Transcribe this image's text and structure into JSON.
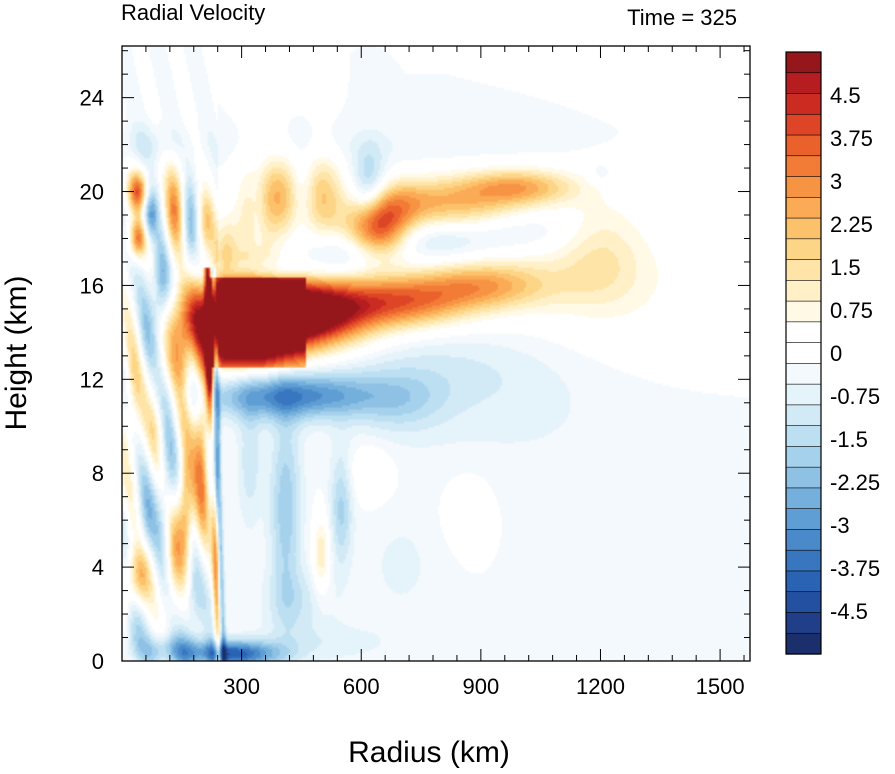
{
  "chart_data": {
    "type": "heatmap",
    "title": "Radial Velocity",
    "time_label": "Time = 325",
    "xlabel": "Radius (km)",
    "ylabel": "Height (km)",
    "xlim": [
      0,
      1500
    ],
    "ylim": [
      0,
      25
    ],
    "x_ticks": [
      300,
      600,
      900,
      1200,
      1500
    ],
    "y_ticks": [
      0,
      4,
      8,
      12,
      16,
      20,
      24
    ],
    "grid": false,
    "colorbar": {
      "min": -5.25,
      "max": 5.25,
      "step": 0.375,
      "tick_labels": [
        "4.5",
        "3.75",
        "3",
        "2.25",
        "1.5",
        "0.75",
        "0",
        "-0.75",
        "-1.5",
        "-2.25",
        "-3",
        "-3.75",
        "-4.5"
      ],
      "tick_values": [
        4.5,
        3.75,
        3,
        2.25,
        1.5,
        0.75,
        0,
        -0.75,
        -1.5,
        -2.25,
        -3,
        -3.75,
        -4.5
      ],
      "colors": [
        "#1a2f6b",
        "#203f88",
        "#2350a0",
        "#2a63b3",
        "#3877c0",
        "#4a8aca",
        "#5e9ed4",
        "#75b0dc",
        "#8ec1e4",
        "#a6d1ec",
        "#bcdff2",
        "#d2eaf6",
        "#e5f3fa",
        "#f4f9fd",
        "#ffffff",
        "#ffffff",
        "#fff9e6",
        "#fff0c8",
        "#fee4a6",
        "#fdd587",
        "#fcc26b",
        "#fbab55",
        "#f79444",
        "#f27b36",
        "#ea612c",
        "#dd4526",
        "#cc2b22",
        "#b51d20",
        "#95171c"
      ]
    },
    "features": [
      {
        "x": 300,
        "y": 14.5,
        "sx": 95,
        "sy": 1.2,
        "v": 7.5
      },
      {
        "x": 460,
        "y": 14.8,
        "sx": 110,
        "sy": 1.0,
        "v": 6.5
      },
      {
        "x": 700,
        "y": 15.3,
        "sx": 120,
        "sy": 0.8,
        "v": 3.5
      },
      {
        "x": 900,
        "y": 16.0,
        "sx": 110,
        "sy": 0.7,
        "v": 2.3
      },
      {
        "x": 1080,
        "y": 16.3,
        "sx": 150,
        "sy": 1.1,
        "v": 0.7
      },
      {
        "x": 1200,
        "y": 17.6,
        "sx": 70,
        "sy": 1.6,
        "v": 0.9
      },
      {
        "x": 1300,
        "y": 16.8,
        "sx": 140,
        "sy": 2.2,
        "v": 0.45
      },
      {
        "x": 1100,
        "y": 13.8,
        "sx": 260,
        "sy": 2.0,
        "v": 0.4
      },
      {
        "x": 640,
        "y": 18.4,
        "sx": 55,
        "sy": 0.9,
        "v": 4.5
      },
      {
        "x": 830,
        "y": 19.5,
        "sx": 120,
        "sy": 0.8,
        "v": 2.3
      },
      {
        "x": 1000,
        "y": 20.2,
        "sx": 100,
        "sy": 0.55,
        "v": 2.5
      },
      {
        "x": 700,
        "y": 19.6,
        "sx": 60,
        "sy": 0.7,
        "v": 1.2
      },
      {
        "x": 330,
        "y": 18.5,
        "sx": 35,
        "sy": 2.0,
        "v": 1.6
      },
      {
        "x": 400,
        "y": 19.8,
        "sx": 40,
        "sy": 1.2,
        "v": 2.5
      },
      {
        "x": 260,
        "y": 17.5,
        "sx": 20,
        "sy": 1.0,
        "v": 1.5
      },
      {
        "x": 500,
        "y": 19.8,
        "sx": 40,
        "sy": 1.3,
        "v": 2.2
      },
      {
        "x": 40,
        "y": 20.0,
        "sx": 18,
        "sy": 0.6,
        "v": 3.8
      },
      {
        "x": 40,
        "y": 18.0,
        "sx": 16,
        "sy": 0.6,
        "v": 3.5
      },
      {
        "x": 130,
        "y": 19.2,
        "sx": 18,
        "sy": 1.4,
        "v": 3.0
      },
      {
        "x": 210,
        "y": 18.6,
        "sx": 16,
        "sy": 1.0,
        "v": 2.0
      },
      {
        "x": 30,
        "y": 11.5,
        "sx": 20,
        "sy": 2.0,
        "v": 1.8
      },
      {
        "x": 150,
        "y": 13.0,
        "sx": 22,
        "sy": 2.0,
        "v": 2.2
      },
      {
        "x": 90,
        "y": 10.0,
        "sx": 20,
        "sy": 2.0,
        "v": 1.4
      },
      {
        "x": 200,
        "y": 9.0,
        "sx": 14,
        "sy": 3.0,
        "v": 3.0
      },
      {
        "x": 160,
        "y": 6.5,
        "sx": 14,
        "sy": 1.8,
        "v": 3.2
      },
      {
        "x": 40,
        "y": 3.5,
        "sx": 22,
        "sy": 1.0,
        "v": 3.0
      },
      {
        "x": 130,
        "y": 4.5,
        "sx": 16,
        "sy": 1.6,
        "v": 2.0
      },
      {
        "x": 220,
        "y": 12.0,
        "sx": 8,
        "sy": 1.2,
        "v": 3.5
      },
      {
        "x": 500,
        "y": 4.5,
        "sx": 15,
        "sy": 1.2,
        "v": 1.5
      },
      {
        "x": 620,
        "y": 8.0,
        "sx": 40,
        "sy": 0.8,
        "v": 0.8
      },
      {
        "x": 870,
        "y": 6.5,
        "sx": 40,
        "sy": 1.0,
        "v": 0.7
      },
      {
        "x": 420,
        "y": 11.3,
        "sx": 150,
        "sy": 0.7,
        "v": -3.2
      },
      {
        "x": 350,
        "y": 16.6,
        "sx": 90,
        "sy": 0.35,
        "v": -1.3
      },
      {
        "x": 560,
        "y": 17.3,
        "sx": 80,
        "sy": 0.7,
        "v": -1.2
      },
      {
        "x": 780,
        "y": 17.9,
        "sx": 100,
        "sy": 0.6,
        "v": -1.0
      },
      {
        "x": 1000,
        "y": 18.3,
        "sx": 100,
        "sy": 0.6,
        "v": -0.6
      },
      {
        "x": 620,
        "y": 20.2,
        "sx": 30,
        "sy": 1.2,
        "v": -1.8
      },
      {
        "x": 450,
        "y": 20.0,
        "sx": 25,
        "sy": 1.1,
        "v": -1.3
      },
      {
        "x": 340,
        "y": 19.0,
        "sx": 18,
        "sy": 1.5,
        "v": -1.0
      },
      {
        "x": 830,
        "y": 12.5,
        "sx": 220,
        "sy": 1.4,
        "v": -0.8
      },
      {
        "x": 1000,
        "y": 10.5,
        "sx": 260,
        "sy": 2.5,
        "v": -0.4
      },
      {
        "x": 70,
        "y": 19.0,
        "sx": 14,
        "sy": 0.8,
        "v": -2.8
      },
      {
        "x": 100,
        "y": 16.0,
        "sx": 16,
        "sy": 1.5,
        "v": -2.6
      },
      {
        "x": 170,
        "y": 18.5,
        "sx": 14,
        "sy": 1.4,
        "v": -2.0
      },
      {
        "x": 60,
        "y": 14.0,
        "sx": 20,
        "sy": 1.6,
        "v": -1.6
      },
      {
        "x": 110,
        "y": 8.0,
        "sx": 20,
        "sy": 2.5,
        "v": -1.8
      },
      {
        "x": 60,
        "y": 6.0,
        "sx": 18,
        "sy": 1.5,
        "v": -1.5
      },
      {
        "x": 30,
        "y": 1.5,
        "sx": 20,
        "sy": 1.2,
        "v": -1.3
      },
      {
        "x": 180,
        "y": 2.5,
        "sx": 20,
        "sy": 1.5,
        "v": -1.5
      },
      {
        "x": 230,
        "y": 10.0,
        "sx": 8,
        "sy": 2.5,
        "v": -2.5
      },
      {
        "x": 410,
        "y": 6.5,
        "sx": 28,
        "sy": 3.0,
        "v": -1.8
      },
      {
        "x": 320,
        "y": 8.5,
        "sx": 22,
        "sy": 2.0,
        "v": -1.0
      },
      {
        "x": 550,
        "y": 6.5,
        "sx": 20,
        "sy": 1.8,
        "v": -1.6
      },
      {
        "x": 440,
        "y": 2.5,
        "sx": 60,
        "sy": 1.0,
        "v": -0.9
      },
      {
        "x": 280,
        "y": 0.3,
        "sx": 80,
        "sy": 0.4,
        "v": -4.0
      },
      {
        "x": 120,
        "y": 0.5,
        "sx": 60,
        "sy": 0.5,
        "v": -1.8
      },
      {
        "x": 520,
        "y": 0.8,
        "sx": 120,
        "sy": 0.6,
        "v": -0.6
      },
      {
        "x": 700,
        "y": 4.0,
        "sx": 60,
        "sy": 1.5,
        "v": -0.5
      },
      {
        "x": 700,
        "y": 11.0,
        "sx": 80,
        "sy": 1.0,
        "v": -0.9
      },
      {
        "x": 1200,
        "y": 20.7,
        "sx": 20,
        "sy": 0.3,
        "v": -0.5
      },
      {
        "x": 600,
        "y": 22.0,
        "sx": 300,
        "sy": 0.6,
        "v": -0.3
      },
      {
        "x": 60,
        "y": 22.0,
        "sx": 60,
        "sy": 0.6,
        "v": -0.7
      }
    ]
  }
}
